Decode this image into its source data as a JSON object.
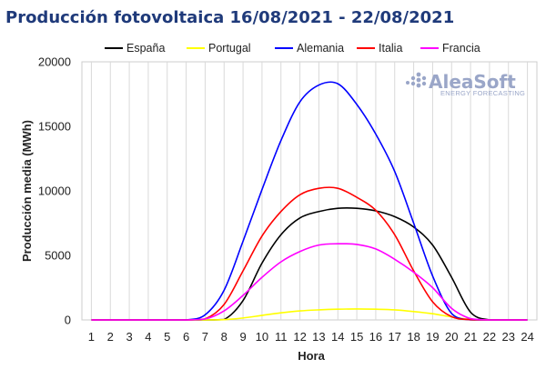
{
  "chart_data": {
    "type": "line",
    "title": "Producción fotovoltaica 16/08/2021 - 22/08/2021",
    "xlabel": "Hora",
    "ylabel": "Producción media (MWh)",
    "x": [
      1,
      2,
      3,
      4,
      5,
      6,
      7,
      8,
      9,
      10,
      11,
      12,
      13,
      14,
      15,
      16,
      17,
      18,
      19,
      20,
      21,
      22,
      23,
      24
    ],
    "ylim": [
      0,
      20000
    ],
    "yticks": [
      0,
      5000,
      10000,
      15000,
      20000
    ],
    "grid": "vertical",
    "legend": "top",
    "series": [
      {
        "name": "España",
        "color": "#000000",
        "values": [
          0,
          0,
          0,
          0,
          0,
          0,
          0,
          30,
          1500,
          4400,
          6600,
          7900,
          8400,
          8650,
          8650,
          8450,
          8000,
          7200,
          5800,
          3300,
          600,
          0,
          0,
          0
        ]
      },
      {
        "name": "Portugal",
        "color": "#ffff00",
        "values": [
          0,
          0,
          0,
          0,
          0,
          0,
          0,
          20,
          150,
          350,
          550,
          700,
          780,
          830,
          850,
          830,
          780,
          650,
          480,
          230,
          40,
          0,
          0,
          0
        ]
      },
      {
        "name": "Alemania",
        "color": "#0000ff",
        "values": [
          0,
          0,
          0,
          0,
          0,
          0,
          400,
          2300,
          6100,
          10100,
          13900,
          16900,
          18200,
          18300,
          16700,
          14400,
          11500,
          7500,
          3400,
          500,
          0,
          0,
          0,
          0
        ]
      },
      {
        "name": "Italia",
        "color": "#ff0000",
        "values": [
          0,
          0,
          0,
          0,
          0,
          0,
          80,
          1200,
          3800,
          6500,
          8400,
          9700,
          10200,
          10200,
          9500,
          8500,
          6600,
          3800,
          1400,
          250,
          20,
          0,
          0,
          0
        ]
      },
      {
        "name": "Francia",
        "color": "#ff00ff",
        "values": [
          0,
          0,
          0,
          0,
          0,
          0,
          70,
          700,
          1900,
          3300,
          4500,
          5300,
          5800,
          5900,
          5850,
          5500,
          4700,
          3700,
          2500,
          900,
          100,
          0,
          0,
          0
        ]
      }
    ]
  },
  "watermark": {
    "brand": "AleaSoft",
    "subtitle": "ENERGY FORECASTING"
  }
}
